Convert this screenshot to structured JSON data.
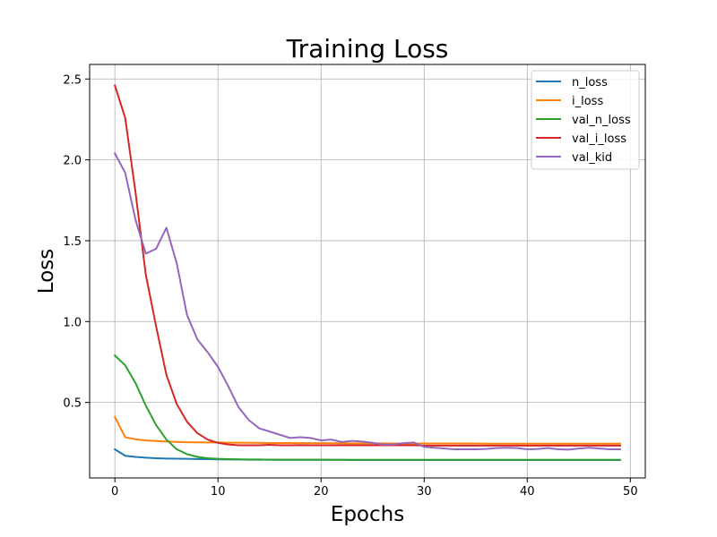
{
  "chart_data": {
    "type": "line",
    "title": "Training Loss",
    "xlabel": "Epochs",
    "ylabel": "Loss",
    "xlim": [
      -2.45,
      51.45
    ],
    "ylim": [
      0.033,
      2.59
    ],
    "xticks": [
      0,
      10,
      20,
      30,
      40,
      50
    ],
    "yticks": [
      0.5,
      1.0,
      1.5,
      2.0,
      2.5
    ],
    "xtick_labels": [
      "0",
      "10",
      "20",
      "30",
      "40",
      "50"
    ],
    "ytick_labels": [
      "0.5",
      "1.0",
      "1.5",
      "2.0",
      "2.5"
    ],
    "grid": true,
    "legend_position": "upper right",
    "x": [
      0,
      1,
      2,
      3,
      4,
      5,
      6,
      7,
      8,
      9,
      10,
      11,
      12,
      13,
      14,
      15,
      16,
      17,
      18,
      19,
      20,
      21,
      22,
      23,
      24,
      25,
      26,
      27,
      28,
      29,
      30,
      31,
      32,
      33,
      34,
      35,
      36,
      37,
      38,
      39,
      40,
      41,
      42,
      43,
      44,
      45,
      46,
      47,
      48,
      49
    ],
    "series": [
      {
        "name": "n_loss",
        "color": "#1f77b4",
        "values": [
          0.21,
          0.17,
          0.163,
          0.158,
          0.155,
          0.153,
          0.152,
          0.151,
          0.15,
          0.149,
          0.148,
          0.147,
          0.147,
          0.146,
          0.146,
          0.146,
          0.145,
          0.145,
          0.145,
          0.145,
          0.145,
          0.145,
          0.145,
          0.144,
          0.144,
          0.144,
          0.144,
          0.144,
          0.144,
          0.144,
          0.144,
          0.144,
          0.144,
          0.144,
          0.144,
          0.144,
          0.144,
          0.144,
          0.144,
          0.144,
          0.144,
          0.144,
          0.144,
          0.144,
          0.144,
          0.144,
          0.144,
          0.144,
          0.144,
          0.144
        ]
      },
      {
        "name": "i_loss",
        "color": "#ff7f0e",
        "values": [
          0.41,
          0.285,
          0.272,
          0.265,
          0.261,
          0.258,
          0.256,
          0.254,
          0.253,
          0.252,
          0.252,
          0.251,
          0.251,
          0.25,
          0.25,
          0.249,
          0.249,
          0.249,
          0.248,
          0.248,
          0.248,
          0.248,
          0.247,
          0.247,
          0.247,
          0.247,
          0.247,
          0.246,
          0.246,
          0.246,
          0.246,
          0.246,
          0.246,
          0.246,
          0.246,
          0.246,
          0.245,
          0.245,
          0.245,
          0.245,
          0.245,
          0.245,
          0.245,
          0.245,
          0.245,
          0.245,
          0.245,
          0.245,
          0.245,
          0.245
        ]
      },
      {
        "name": "val_n_loss",
        "color": "#2ca02c",
        "values": [
          0.79,
          0.73,
          0.62,
          0.48,
          0.36,
          0.27,
          0.21,
          0.18,
          0.163,
          0.155,
          0.151,
          0.149,
          0.148,
          0.147,
          0.147,
          0.146,
          0.146,
          0.146,
          0.146,
          0.146,
          0.146,
          0.145,
          0.145,
          0.145,
          0.145,
          0.145,
          0.145,
          0.145,
          0.145,
          0.145,
          0.145,
          0.145,
          0.145,
          0.145,
          0.145,
          0.145,
          0.145,
          0.145,
          0.145,
          0.145,
          0.145,
          0.145,
          0.145,
          0.145,
          0.145,
          0.145,
          0.145,
          0.145,
          0.145,
          0.145
        ]
      },
      {
        "name": "val_i_loss",
        "color": "#d62728",
        "values": [
          2.46,
          2.26,
          1.8,
          1.29,
          0.97,
          0.67,
          0.49,
          0.38,
          0.31,
          0.27,
          0.25,
          0.24,
          0.235,
          0.235,
          0.235,
          0.238,
          0.235,
          0.235,
          0.236,
          0.235,
          0.235,
          0.235,
          0.235,
          0.235,
          0.235,
          0.235,
          0.235,
          0.235,
          0.235,
          0.235,
          0.233,
          0.233,
          0.233,
          0.233,
          0.233,
          0.233,
          0.233,
          0.233,
          0.233,
          0.233,
          0.233,
          0.233,
          0.233,
          0.233,
          0.233,
          0.233,
          0.233,
          0.233,
          0.233,
          0.233
        ]
      },
      {
        "name": "val_kid",
        "color": "#9467bd",
        "values": [
          2.04,
          1.92,
          1.63,
          1.42,
          1.45,
          1.58,
          1.36,
          1.04,
          0.89,
          0.81,
          0.72,
          0.6,
          0.47,
          0.39,
          0.34,
          0.32,
          0.3,
          0.28,
          0.285,
          0.28,
          0.265,
          0.27,
          0.255,
          0.262,
          0.258,
          0.25,
          0.24,
          0.24,
          0.248,
          0.252,
          0.225,
          0.22,
          0.215,
          0.21,
          0.21,
          0.21,
          0.212,
          0.218,
          0.22,
          0.218,
          0.21,
          0.212,
          0.218,
          0.21,
          0.208,
          0.215,
          0.22,
          0.215,
          0.21,
          0.21
        ]
      }
    ]
  }
}
